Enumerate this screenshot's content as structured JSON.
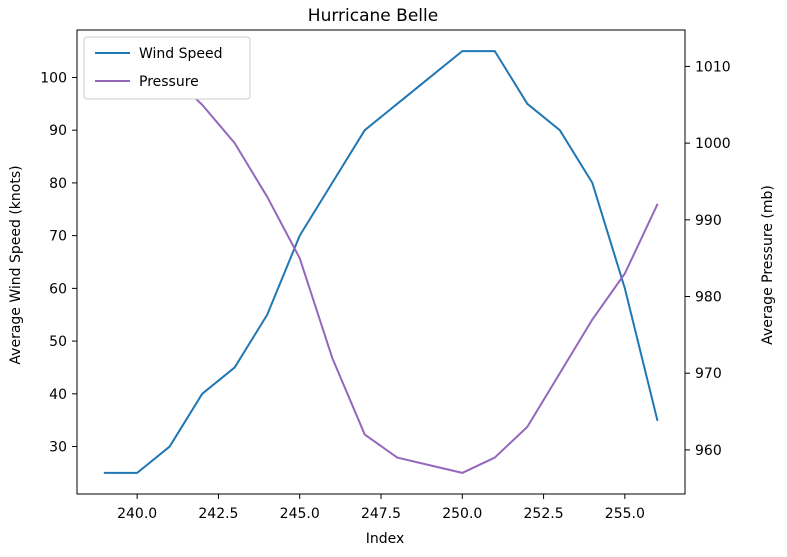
{
  "chart_data": {
    "type": "line",
    "title": "Hurricane Belle",
    "xlabel": "Index",
    "ylabel_left": "Average Wind Speed (knots)",
    "ylabel_right": "Average Pressure (mb)",
    "xlim": [
      238.15,
      256.85
    ],
    "ylim_left": [
      21,
      109
    ],
    "ylim_right": [
      954.25,
      1014.75
    ],
    "xticks": [
      240.0,
      242.5,
      245.0,
      247.5,
      250.0,
      252.5,
      255.0
    ],
    "xtick_labels": [
      "240.0",
      "242.5",
      "245.0",
      "247.5",
      "250.0",
      "252.5",
      "255.0"
    ],
    "yticks_left": [
      30,
      40,
      50,
      60,
      70,
      80,
      90,
      100
    ],
    "ytick_labels_left": [
      "30",
      "40",
      "50",
      "60",
      "70",
      "80",
      "90",
      "100"
    ],
    "yticks_right": [
      960,
      970,
      980,
      990,
      1000,
      1010
    ],
    "ytick_labels_right": [
      "960",
      "970",
      "980",
      "990",
      "1000",
      "1010"
    ],
    "grid": false,
    "legend_position": "top-left",
    "x": [
      239,
      240,
      241,
      242,
      243,
      244,
      245,
      246,
      247,
      248,
      249,
      250,
      251,
      252,
      253,
      254,
      255,
      256
    ],
    "series": [
      {
        "name": "Wind Speed",
        "axis": "left",
        "color": "#1f77b4",
        "values": [
          25,
          25,
          30,
          40,
          45,
          55,
          70,
          80,
          90,
          95,
          100,
          105,
          105,
          95,
          90,
          80,
          60,
          35
        ]
      },
      {
        "name": "Pressure",
        "axis": "right",
        "color": "#9467bd",
        "values": [
          1012,
          1012,
          1009,
          1005,
          1000,
          993,
          985,
          972,
          962,
          959,
          958,
          957,
          959,
          963,
          970,
          977,
          983,
          992
        ]
      }
    ]
  }
}
